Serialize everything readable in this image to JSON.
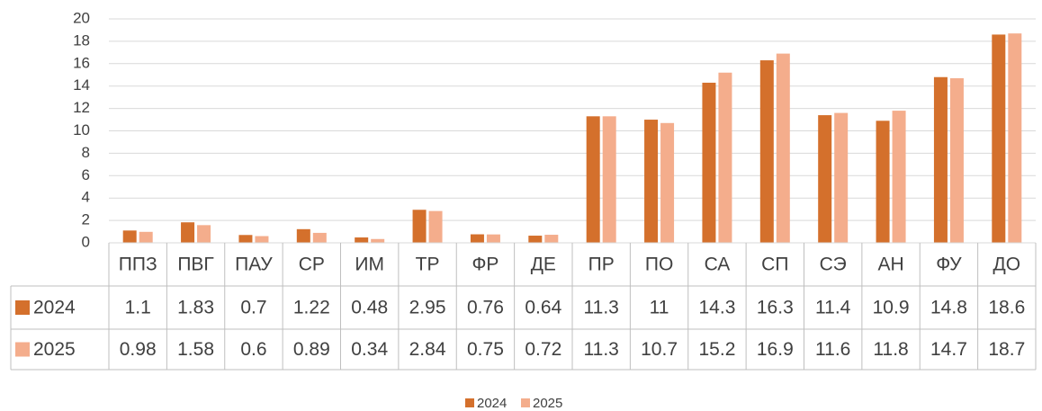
{
  "chart_data": {
    "type": "bar",
    "categories": [
      "ППЗ",
      "ПВГ",
      "ПАУ",
      "СР",
      "ИМ",
      "ТР",
      "ФР",
      "ДЕ",
      "ПР",
      "ПО",
      "СА",
      "СП",
      "СЭ",
      "АН",
      "ФУ",
      "ДО"
    ],
    "series": [
      {
        "name": "2024",
        "color": "#d4702c",
        "values": [
          1.1,
          1.83,
          0.7,
          1.22,
          0.48,
          2.95,
          0.76,
          0.64,
          11.3,
          11,
          14.3,
          16.3,
          11.4,
          10.9,
          14.8,
          18.6
        ]
      },
      {
        "name": "2025",
        "color": "#f4ad8c",
        "values": [
          0.98,
          1.58,
          0.6,
          0.89,
          0.34,
          2.84,
          0.75,
          0.72,
          11.3,
          10.7,
          15.2,
          16.9,
          11.6,
          11.8,
          14.7,
          18.7
        ]
      }
    ],
    "ylim": [
      0,
      20
    ],
    "yticks": [
      0,
      2,
      4,
      6,
      8,
      10,
      12,
      14,
      16,
      18,
      20
    ],
    "grid": true,
    "legend": "bottom",
    "data_table": true
  }
}
